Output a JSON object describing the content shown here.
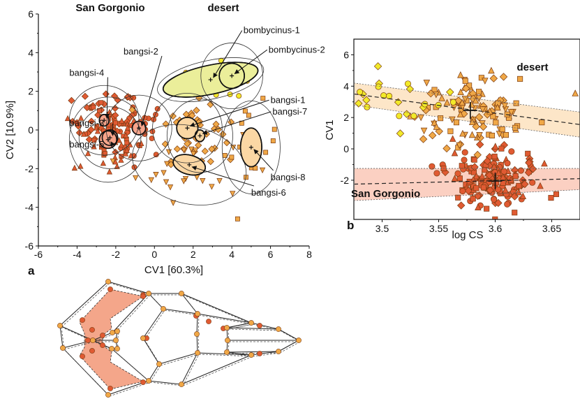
{
  "colors": {
    "san_gorgonio": "#e05a32",
    "san_gorgonio_light": "#f6a48a",
    "desert_orange": "#f0a847",
    "desert_light": "#fbd7a4",
    "bombycinus": "#f2ea2a",
    "bombycinus_light": "#ebee9a",
    "band_desert": "#fde6c8",
    "band_sg": "#fbd0c2",
    "wireframe_fill": "#f4a68a"
  },
  "chart_data": [
    {
      "id": "a",
      "type": "scatter",
      "panel_label": "a",
      "xlabel": "CV1 [60.3%]",
      "ylabel": "CV2 [10.9%]",
      "xlim": [
        -6,
        8
      ],
      "ylim": [
        -6,
        6
      ],
      "xticks": [
        "-6",
        "-4",
        "-2",
        "0",
        "2",
        "4",
        "6",
        "8"
      ],
      "yticks": [
        "-6",
        "-4",
        "-2",
        "0",
        "2",
        "4",
        "6"
      ],
      "group_titles": [
        "San Gorgonio",
        "desert"
      ],
      "groups": [
        {
          "name": "bangsi-2",
          "region": "San Gorgonio",
          "marker": "circle",
          "center": [
            -0.8,
            0.1
          ],
          "ellipse_inner": [
            0.35,
            0.35
          ],
          "ellipse_outer": [
            1.7,
            1.7
          ],
          "label_pos": [
            -1.6,
            3.9
          ]
        },
        {
          "name": "bangsi-4",
          "region": "San Gorgonio",
          "marker": "diamond",
          "center": [
            -2.6,
            0.5
          ],
          "ellipse_inner": [
            0.25,
            0.3
          ],
          "ellipse_outer": [
            1.8,
            1.8
          ],
          "label_pos": [
            -4.4,
            2.8
          ]
        },
        {
          "name": "bangsi-3",
          "region": "San Gorgonio",
          "marker": "square",
          "center": [
            -2.3,
            -0.4
          ],
          "ellipse_inner": [
            0.4,
            0.4
          ],
          "ellipse_outer": [
            1.6,
            1.6
          ],
          "label_pos": [
            -4.4,
            0.2
          ]
        },
        {
          "name": "bangsi-5",
          "region": "San Gorgonio",
          "marker": "triangle",
          "center": [
            -2.4,
            -0.5
          ],
          "ellipse_inner": [
            0.45,
            0.45
          ],
          "ellipse_outer": [
            2.0,
            2.2
          ],
          "label_pos": [
            -4.4,
            -0.9
          ]
        },
        {
          "name": "bombycinus-1",
          "region": "desert",
          "marker": "circle",
          "center": [
            2.9,
            2.6
          ],
          "ellipse_inner": [
            2.5,
            0.75
          ],
          "ellipse_outer": [
            2.8,
            1.0
          ],
          "label_pos": [
            4.6,
            5.0
          ]
        },
        {
          "name": "bombycinus-2",
          "region": "desert",
          "marker": "circle",
          "center": [
            4.0,
            2.8
          ],
          "ellipse_inner": [
            0.65,
            0.65
          ],
          "ellipse_outer": [
            1.6,
            1.7
          ],
          "label_pos": [
            5.9,
            4.0
          ]
        },
        {
          "name": "bangsi-1",
          "region": "desert",
          "marker": "diamond",
          "center": [
            1.7,
            0.1
          ],
          "ellipse_inner": [
            0.55,
            0.55
          ],
          "ellipse_outer": [
            1.8,
            1.8
          ],
          "label_pos": [
            6.0,
            1.4
          ]
        },
        {
          "name": "bangsi-7",
          "region": "desert",
          "marker": "diamond",
          "center": [
            2.35,
            -0.3
          ],
          "ellipse_inner": [
            0.25,
            0.3
          ],
          "ellipse_outer": [
            1.7,
            1.9
          ],
          "label_pos": [
            6.1,
            0.8
          ]
        },
        {
          "name": "bangsi-6",
          "region": "desert",
          "marker": "triangle-down",
          "center": [
            1.8,
            -1.8
          ],
          "ellipse_inner": [
            0.85,
            0.5
          ],
          "ellipse_outer": [
            3.0,
            2.0
          ],
          "label_pos": [
            5.0,
            -3.4
          ]
        },
        {
          "name": "bangsi-8",
          "region": "desert",
          "marker": "square",
          "center": [
            5.0,
            -0.9
          ],
          "ellipse_inner": [
            0.55,
            1.0
          ],
          "ellipse_outer": [
            1.5,
            2.4
          ],
          "label_pos": [
            6.0,
            -2.6
          ]
        }
      ]
    },
    {
      "id": "b",
      "type": "scatter",
      "panel_label": "b",
      "xlabel": "log CS",
      "ylabel": "CV1",
      "xlim": [
        3.475,
        3.675
      ],
      "ylim": [
        -4.5,
        7
      ],
      "xticks": [
        "3.5",
        "3.55",
        "3.6",
        "3.65"
      ],
      "yticks": [
        "-2",
        "0",
        "2",
        "4",
        "6"
      ],
      "annotations": [
        "desert",
        "San Gorgonio"
      ],
      "regressions": [
        {
          "group": "desert",
          "line": [
            [
              3.475,
              3.5
            ],
            [
              3.675,
              1.55
            ]
          ],
          "upper": [
            [
              3.475,
              4.2
            ],
            [
              3.675,
              2.35
            ]
          ],
          "lower": [
            [
              3.475,
              2.8
            ],
            [
              3.675,
              0.75
            ]
          ],
          "centroid": [
            3.578,
            2.45
          ]
        },
        {
          "group": "San Gorgonio",
          "line": [
            [
              3.475,
              -2.25
            ],
            [
              3.675,
              -1.9
            ]
          ],
          "upper": [
            [
              3.475,
              -1.25
            ],
            [
              3.675,
              -1.25
            ]
          ],
          "lower": [
            [
              3.475,
              -3.3
            ],
            [
              3.675,
              -2.6
            ]
          ],
          "centroid": [
            3.6,
            -2.05
          ]
        }
      ]
    },
    {
      "id": "c",
      "type": "diagram",
      "title": "shape deformation wireframe"
    }
  ]
}
